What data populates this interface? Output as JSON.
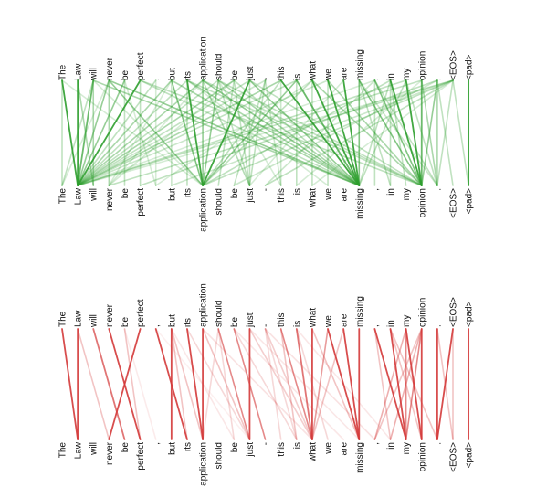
{
  "tokens": [
    "The",
    "Law",
    "will",
    "never",
    "be",
    "perfect",
    ",",
    "but",
    "its",
    "application",
    "should",
    "be",
    "just",
    "-",
    "this",
    "is",
    "what",
    "we",
    "are",
    "missing",
    ",",
    "in",
    "my",
    "opinion",
    ".",
    "<EOS>",
    "<pad>"
  ],
  "panels": [
    {
      "id": "green",
      "color": "#2e9e2e",
      "links": [
        [
          0,
          1,
          0.9
        ],
        [
          1,
          1,
          0.9
        ],
        [
          2,
          1,
          0.7
        ],
        [
          3,
          1,
          0.5
        ],
        [
          4,
          1,
          0.5
        ],
        [
          5,
          1,
          0.9
        ],
        [
          6,
          1,
          0.3
        ],
        [
          7,
          1,
          0.4
        ],
        [
          8,
          1,
          0.3
        ],
        [
          9,
          1,
          0.4
        ],
        [
          10,
          1,
          0.3
        ],
        [
          11,
          1,
          0.4
        ],
        [
          12,
          1,
          0.3
        ],
        [
          13,
          1,
          0.25
        ],
        [
          14,
          1,
          0.4
        ],
        [
          15,
          1,
          0.3
        ],
        [
          17,
          1,
          0.25
        ],
        [
          20,
          1,
          0.2
        ],
        [
          22,
          1,
          0.3
        ],
        [
          23,
          1,
          0.3
        ],
        [
          25,
          1,
          0.2
        ],
        [
          0,
          0,
          0.3
        ],
        [
          2,
          0,
          0.3
        ],
        [
          3,
          0,
          0.2
        ],
        [
          1,
          2,
          0.4
        ],
        [
          2,
          2,
          0.4
        ],
        [
          3,
          3,
          0.4
        ],
        [
          4,
          4,
          0.3
        ],
        [
          5,
          5,
          0.3
        ],
        [
          3,
          9,
          0.5
        ],
        [
          7,
          9,
          0.6
        ],
        [
          8,
          9,
          0.9
        ],
        [
          9,
          9,
          0.5
        ],
        [
          10,
          9,
          0.5
        ],
        [
          12,
          9,
          0.9
        ],
        [
          14,
          9,
          0.3
        ],
        [
          15,
          9,
          0.5
        ],
        [
          16,
          9,
          0.3
        ],
        [
          21,
          9,
          0.3
        ],
        [
          25,
          9,
          0.3
        ],
        [
          0,
          9,
          0.2
        ],
        [
          2,
          9,
          0.2
        ],
        [
          2,
          19,
          0.4
        ],
        [
          3,
          19,
          0.5
        ],
        [
          5,
          19,
          0.3
        ],
        [
          7,
          19,
          0.4
        ],
        [
          8,
          19,
          0.4
        ],
        [
          9,
          19,
          0.5
        ],
        [
          10,
          19,
          0.4
        ],
        [
          11,
          19,
          0.3
        ],
        [
          12,
          19,
          0.5
        ],
        [
          14,
          19,
          0.9
        ],
        [
          15,
          19,
          0.7
        ],
        [
          16,
          19,
          0.9
        ],
        [
          17,
          19,
          0.9
        ],
        [
          18,
          19,
          0.9
        ],
        [
          19,
          19,
          0.6
        ],
        [
          21,
          19,
          0.3
        ],
        [
          22,
          19,
          0.3
        ],
        [
          5,
          23,
          0.3
        ],
        [
          8,
          23,
          0.3
        ],
        [
          9,
          23,
          0.3
        ],
        [
          10,
          23,
          0.3
        ],
        [
          12,
          23,
          0.3
        ],
        [
          16,
          23,
          0.4
        ],
        [
          17,
          23,
          0.4
        ],
        [
          19,
          23,
          0.6
        ],
        [
          20,
          23,
          0.6
        ],
        [
          21,
          23,
          0.9
        ],
        [
          22,
          23,
          0.9
        ],
        [
          23,
          23,
          0.7
        ],
        [
          24,
          23,
          0.5
        ],
        [
          25,
          13,
          0.3
        ],
        [
          25,
          7,
          0.25
        ],
        [
          24,
          5,
          0.3
        ],
        [
          25,
          3,
          0.3
        ],
        [
          24,
          11,
          0.25
        ],
        [
          25,
          16,
          0.2
        ],
        [
          20,
          13,
          0.25
        ],
        [
          23,
          15,
          0.2
        ],
        [
          9,
          12,
          0.35
        ],
        [
          10,
          12,
          0.3
        ],
        [
          11,
          12,
          0.3
        ],
        [
          12,
          12,
          0.3
        ],
        [
          13,
          12,
          0.3
        ],
        [
          11,
          10,
          0.3
        ],
        [
          13,
          11,
          0.3
        ],
        [
          8,
          8,
          0.3
        ],
        [
          15,
          15,
          0.3
        ],
        [
          16,
          16,
          0.3
        ],
        [
          17,
          17,
          0.3
        ],
        [
          21,
          21,
          0.3
        ],
        [
          20,
          20,
          0.3
        ],
        [
          22,
          24,
          0.3
        ],
        [
          23,
          24,
          0.4
        ],
        [
          24,
          24,
          0.4
        ],
        [
          25,
          24,
          0.3
        ],
        [
          21,
          22,
          0.3
        ],
        [
          19,
          21,
          0.3
        ],
        [
          24,
          25,
          0.3
        ],
        [
          26,
          26,
          0.9
        ],
        [
          25,
          26,
          0.3
        ],
        [
          6,
          6,
          0.2
        ],
        [
          4,
          6,
          0.2
        ],
        [
          7,
          7,
          0.25
        ],
        [
          13,
          14,
          0.25
        ],
        [
          14,
          14,
          0.25
        ],
        [
          9,
          3,
          0.2
        ],
        [
          11,
          3,
          0.2
        ],
        [
          7,
          3,
          0.2
        ],
        [
          16,
          6,
          0.2
        ],
        [
          18,
          12,
          0.2
        ],
        [
          19,
          24,
          0.25
        ],
        [
          20,
          24,
          0.3
        ],
        [
          8,
          17,
          0.2
        ],
        [
          10,
          14,
          0.2
        ]
      ]
    },
    {
      "id": "red",
      "color": "#d43a3a",
      "links": [
        [
          0,
          1,
          0.9
        ],
        [
          1,
          1,
          0.9
        ],
        [
          2,
          4,
          0.7
        ],
        [
          3,
          5,
          0.9
        ],
        [
          4,
          5,
          0.3
        ],
        [
          5,
          3,
          0.9
        ],
        [
          1,
          3,
          0.3
        ],
        [
          6,
          8,
          0.9
        ],
        [
          7,
          7,
          0.9
        ],
        [
          8,
          9,
          0.9
        ],
        [
          9,
          9,
          0.9
        ],
        [
          7,
          9,
          0.3
        ],
        [
          7,
          8,
          0.3
        ],
        [
          10,
          9,
          0.2
        ],
        [
          10,
          12,
          0.6
        ],
        [
          11,
          13,
          0.6
        ],
        [
          12,
          12,
          0.9
        ],
        [
          9,
          12,
          0.3
        ],
        [
          8,
          12,
          0.2
        ],
        [
          10,
          11,
          0.2
        ],
        [
          13,
          14,
          0.2
        ],
        [
          14,
          16,
          0.6
        ],
        [
          15,
          16,
          0.7
        ],
        [
          16,
          16,
          0.9
        ],
        [
          17,
          16,
          0.5
        ],
        [
          13,
          16,
          0.25
        ],
        [
          14,
          15,
          0.3
        ],
        [
          15,
          17,
          0.2
        ],
        [
          12,
          16,
          0.25
        ],
        [
          11,
          15,
          0.2
        ],
        [
          13,
          15,
          0.2
        ],
        [
          18,
          16,
          0.3
        ],
        [
          17,
          19,
          0.9
        ],
        [
          18,
          19,
          0.9
        ],
        [
          19,
          19,
          0.9
        ],
        [
          16,
          19,
          0.3
        ],
        [
          20,
          22,
          0.9
        ],
        [
          21,
          22,
          0.9
        ],
        [
          22,
          22,
          0.6
        ],
        [
          23,
          22,
          0.6
        ],
        [
          22,
          23,
          0.9
        ],
        [
          23,
          23,
          0.9
        ],
        [
          21,
          23,
          0.3
        ],
        [
          20,
          21,
          0.3
        ],
        [
          22,
          20,
          0.4
        ],
        [
          23,
          20,
          0.3
        ],
        [
          21,
          24,
          0.3
        ],
        [
          23,
          21,
          0.4
        ],
        [
          24,
          24,
          0.9
        ],
        [
          25,
          24,
          0.9
        ],
        [
          26,
          26,
          0.9
        ],
        [
          24,
          25,
          0.3
        ],
        [
          25,
          25,
          0.3
        ],
        [
          4,
          6,
          0.1
        ],
        [
          7,
          11,
          0.12
        ],
        [
          11,
          18,
          0.12
        ],
        [
          9,
          16,
          0.15
        ],
        [
          13,
          20,
          0.15
        ],
        [
          15,
          21,
          0.12
        ],
        [
          6,
          12,
          0.08
        ],
        [
          12,
          19,
          0.12
        ]
      ]
    }
  ]
}
